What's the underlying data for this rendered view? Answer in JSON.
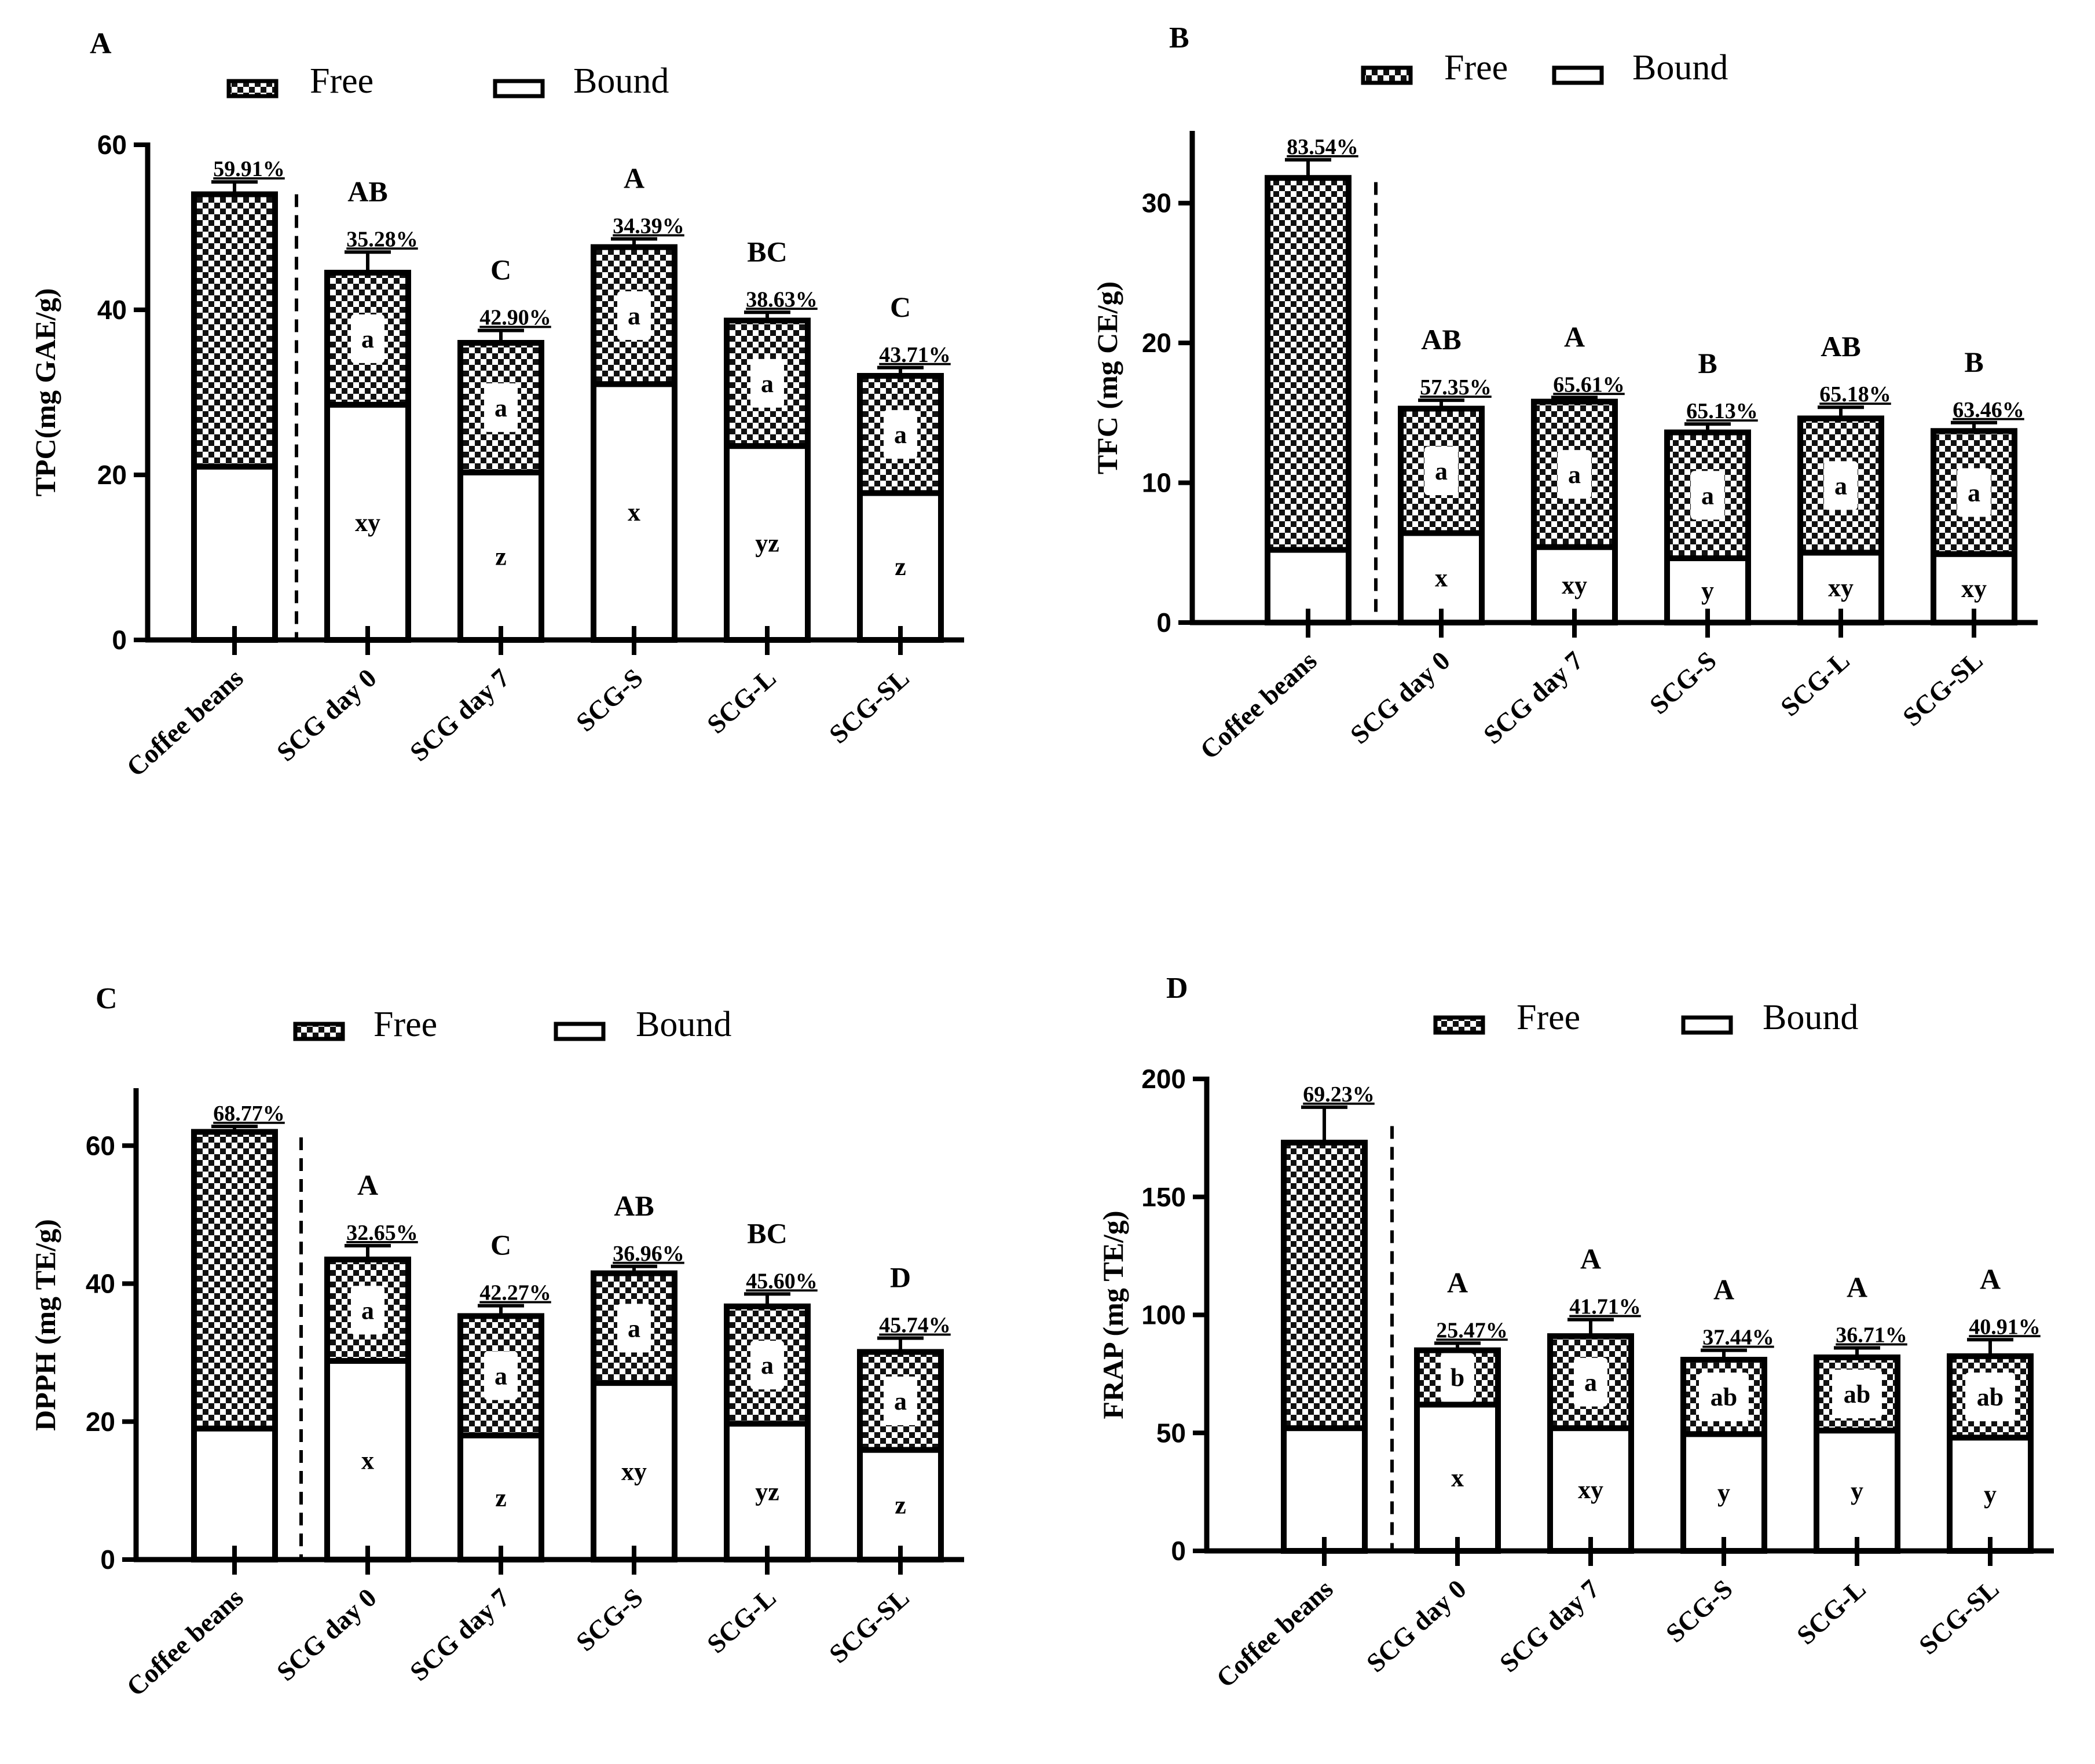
{
  "legend": {
    "free": "Free",
    "bound": "Bound"
  },
  "chart_data": [
    {
      "type": "bar",
      "stacked": true,
      "panel": "A",
      "ylabel": "TPC(mg GAE/g)",
      "ylim": [
        0,
        60
      ],
      "yticks": [
        0,
        20,
        40,
        60
      ],
      "categories": [
        "Coffee beans",
        "SCG day 0",
        "SCG day 7",
        "SCG-S",
        "SCG-L",
        "SCG-SL"
      ],
      "series": [
        {
          "name": "Bound",
          "values": [
            21,
            28.5,
            20.3,
            31,
            23.5,
            17.8
          ]
        },
        {
          "name": "Free",
          "values": [
            33,
            16,
            15.7,
            16.6,
            15.2,
            14.2
          ]
        }
      ],
      "error": [
        1.5,
        2.5,
        1.5,
        1,
        1,
        1
      ],
      "percent_labels": [
        "59.91%",
        "35.28%",
        "42.90%",
        "34.39%",
        "38.63%",
        "43.71%"
      ],
      "total_sig": [
        "",
        "AB",
        "C",
        "A",
        "BC",
        "C"
      ],
      "free_sig": [
        "",
        "a",
        "a",
        "a",
        "a",
        "a"
      ],
      "bound_sig": [
        "",
        "xy",
        "z",
        "x",
        "yz",
        "z"
      ]
    },
    {
      "type": "bar",
      "stacked": true,
      "panel": "B",
      "ylabel": "TFC (mg CE/g)",
      "ylim": [
        0,
        35
      ],
      "yticks": [
        0,
        10,
        20,
        30
      ],
      "categories": [
        "Coffee beans",
        "SCG day 0",
        "SCG day 7",
        "SCG-S",
        "SCG-L",
        "SCG-SL"
      ],
      "series": [
        {
          "name": "Bound",
          "values": [
            5.2,
            6.4,
            5.4,
            4.6,
            5,
            4.9
          ]
        },
        {
          "name": "Free",
          "values": [
            26.6,
            8.9,
            10.4,
            9,
            9.6,
            8.8
          ]
        }
      ],
      "error": [
        1.3,
        0.6,
        0.3,
        0.6,
        0.8,
        0.6
      ],
      "percent_labels": [
        "83.54%",
        "57.35%",
        "65.61%",
        "65.13%",
        "65.18%",
        "63.46%"
      ],
      "total_sig": [
        "",
        "AB",
        "A",
        "B",
        "AB",
        "B"
      ],
      "free_sig": [
        "",
        "a",
        "a",
        "a",
        "a",
        "a"
      ],
      "bound_sig": [
        "",
        "x",
        "xy",
        "y",
        "xy",
        "xy"
      ]
    },
    {
      "type": "bar",
      "stacked": true,
      "panel": "C",
      "ylabel": "DPPH (mg TE/g)",
      "ylim": [
        0,
        68
      ],
      "yticks": [
        0,
        20,
        40,
        60
      ],
      "categories": [
        "Coffee beans",
        "SCG day 0",
        "SCG day 7",
        "SCG-S",
        "SCG-L",
        "SCG-SL"
      ],
      "series": [
        {
          "name": "Bound",
          "values": [
            19,
            28.8,
            18,
            25.6,
            19.7,
            15.9
          ]
        },
        {
          "name": "Free",
          "values": [
            43,
            14.7,
            17.3,
            15.9,
            17,
            14.2
          ]
        }
      ],
      "error": [
        0.8,
        2,
        1.5,
        1,
        1.8,
        2
      ],
      "percent_labels": [
        "68.77%",
        "32.65%",
        "42.27%",
        "36.96%",
        "45.60%",
        "45.74%"
      ],
      "total_sig": [
        "",
        "A",
        "C",
        "AB",
        "BC",
        "D"
      ],
      "free_sig": [
        "",
        "a",
        "a",
        "a",
        "a",
        "a"
      ],
      "bound_sig": [
        "",
        "x",
        "z",
        "xy",
        "yz",
        "z"
      ]
    },
    {
      "type": "bar",
      "stacked": true,
      "panel": "D",
      "ylabel": "FRAP (mg TE/g)",
      "ylim": [
        0,
        200
      ],
      "yticks": [
        0,
        50,
        100,
        150,
        200
      ],
      "categories": [
        "Coffee beans",
        "SCG day 0",
        "SCG day 7",
        "SCG-S",
        "SCG-L",
        "SCG-SL"
      ],
      "series": [
        {
          "name": "Bound",
          "values": [
            52,
            62,
            52,
            49.5,
            51,
            48
          ]
        },
        {
          "name": "Free",
          "values": [
            121,
            23,
            39,
            31.5,
            31,
            34.5
          ]
        }
      ],
      "error": [
        15,
        3,
        7,
        4,
        4,
        7
      ],
      "percent_labels": [
        "69.23%",
        "25.47%",
        "41.71%",
        "37.44%",
        "36.71%",
        "40.91%"
      ],
      "total_sig": [
        "",
        "A",
        "A",
        "A",
        "A",
        "A"
      ],
      "free_sig": [
        "",
        "b",
        "a",
        "ab",
        "ab",
        "ab"
      ],
      "bound_sig": [
        "",
        "x",
        "xy",
        "y",
        "y",
        "y"
      ]
    }
  ]
}
